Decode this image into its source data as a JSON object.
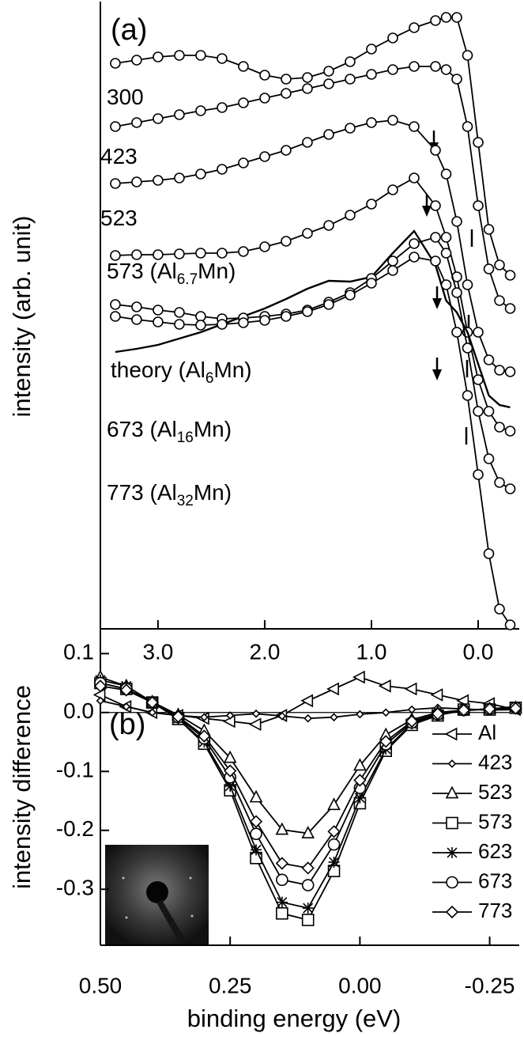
{
  "chart_data": [
    {
      "type": "line",
      "title": "(a)",
      "ylabel": "intensity (arb. unit)",
      "x": [
        3.4,
        3.2,
        3.0,
        2.8,
        2.6,
        2.4,
        2.2,
        2.0,
        1.8,
        1.6,
        1.4,
        1.2,
        1.0,
        0.8,
        0.6,
        0.4,
        0.3,
        0.2,
        0.1,
        0.0,
        -0.1,
        -0.2,
        -0.3
      ],
      "xlim": [
        3.54,
        -0.385
      ],
      "ylim": [
        0,
        793
      ],
      "xticks": [
        {
          "value": 3,
          "label": "3.0"
        },
        {
          "value": 2,
          "label": "2.0"
        },
        {
          "value": 1,
          "label": "1.0"
        },
        {
          "value": 0,
          "label": "0.0"
        }
      ],
      "series": [
        {
          "label": {
            "text": "300"
          },
          "marker": "circle",
          "color": "#000000",
          "values": [
            715,
            719,
            723,
            725,
            725,
            721,
            711,
            700,
            695,
            697,
            705,
            717,
            733,
            747,
            760,
            769,
            773,
            773,
            725,
            615,
            505,
            460,
            447
          ]
        },
        {
          "label": {
            "text": "423"
          },
          "marker": "circle",
          "color": "#000000",
          "values": [
            635,
            640,
            645,
            650,
            655,
            659,
            665,
            671,
            677,
            683,
            689,
            695,
            701,
            707,
            711,
            711,
            707,
            695,
            635,
            535,
            455,
            415,
            405
          ]
        },
        {
          "label": {
            "text": "523"
          },
          "marker": "circle",
          "color": "#000000",
          "values": [
            563,
            565,
            567,
            570,
            575,
            581,
            589,
            597,
            605,
            615,
            625,
            633,
            640,
            643,
            635,
            605,
            575,
            515,
            435,
            375,
            340,
            327,
            325
          ]
        },
        {
          "label": {
            "text": "573 (Al",
            "sub": "6.7",
            "tail": "Mn)"
          },
          "marker": "circle",
          "color": "#000000",
          "values": [
            472,
            473,
            473,
            474,
            475,
            475,
            477,
            483,
            490,
            500,
            510,
            523,
            537,
            555,
            570,
            535,
            495,
            445,
            375,
            315,
            275,
            255,
            250
          ]
        },
        {
          "label": {
            "text": "theory (Al",
            "sub": "6",
            "tail": "Mn)"
          },
          "marker": "none",
          "color": "#000000",
          "values": [
            350,
            354,
            359,
            367,
            375,
            385,
            395,
            405,
            417,
            430,
            440,
            439,
            445,
            475,
            503,
            460,
            415,
            400,
            375,
            335,
            295,
            283,
            280
          ]
        },
        {
          "label": {
            "text": "673 (Al",
            "sub": "16",
            "tail": "Mn)"
          },
          "marker": "circle",
          "color": "#000000",
          "values": [
            410,
            407,
            403,
            400,
            395,
            392,
            393,
            395,
            398,
            403,
            413,
            425,
            443,
            465,
            487,
            495,
            475,
            425,
            355,
            275,
            215,
            185,
            177
          ]
        },
        {
          "label": {
            "text": "773 (Al",
            "sub": "32",
            "tail": "Mn)"
          },
          "marker": "circle",
          "color": "#000000",
          "values": [
            395,
            391,
            388,
            385,
            384,
            385,
            387,
            390,
            395,
            401,
            410,
            422,
            437,
            453,
            470,
            465,
            435,
            375,
            295,
            195,
            95,
            25,
            5
          ]
        }
      ]
    },
    {
      "type": "line",
      "title": "(b)",
      "ylabel": "intensity difference",
      "xlabel": "binding energy (eV)",
      "x": [
        0.5,
        0.45,
        0.4,
        0.35,
        0.3,
        0.25,
        0.2,
        0.15,
        0.1,
        0.05,
        0.0,
        -0.05,
        -0.1,
        -0.15,
        -0.2,
        -0.25,
        -0.3
      ],
      "xlim": [
        0.5,
        -0.307
      ],
      "ylim": [
        -0.395,
        0.142
      ],
      "xticks": [
        {
          "value": 0.5,
          "label": "0.50"
        },
        0.25,
        {
          "value": 0,
          "label": "0.00"
        },
        -0.25
      ],
      "yticks": [
        0.1,
        {
          "value": 0,
          "label": "0.0"
        },
        -0.1,
        -0.2,
        -0.3
      ],
      "zero_line": true,
      "legend": "right",
      "series": [
        {
          "name": "Al",
          "marker": "triangle-left",
          "color": "#000000",
          "values": [
            0.03,
            0.01,
            0.0,
            -0.005,
            -0.01,
            -0.015,
            -0.02,
            -0.005,
            0.02,
            0.04,
            0.06,
            0.045,
            0.04,
            0.03,
            0.02,
            0.015,
            0.005
          ]
        },
        {
          "name": "423",
          "marker": "diamond-small",
          "color": "#000000",
          "values": [
            0.02,
            0.01,
            0.0,
            -0.005,
            -0.008,
            -0.005,
            -0.002,
            -0.006,
            -0.01,
            -0.008,
            -0.003,
            0.0,
            0.005,
            0.008,
            0.006,
            0.004,
            0.005
          ]
        },
        {
          "name": "523",
          "marker": "triangle-up",
          "color": "#000000",
          "values": [
            0.06,
            0.045,
            0.018,
            -0.004,
            -0.031,
            -0.077,
            -0.144,
            -0.199,
            -0.205,
            -0.157,
            -0.09,
            -0.038,
            -0.012,
            0.0,
            0.004,
            0.006,
            0.008
          ]
        },
        {
          "name": "573",
          "marker": "square",
          "color": "#000000",
          "values": [
            0.05,
            0.04,
            0.017,
            -0.011,
            -0.053,
            -0.132,
            -0.247,
            -0.341,
            -0.352,
            -0.269,
            -0.154,
            -0.065,
            -0.021,
            -0.005,
            0.005,
            0.005,
            0.008
          ]
        },
        {
          "name": "623",
          "marker": "star",
          "color": "#000000",
          "values": [
            0.055,
            0.045,
            0.017,
            -0.01,
            -0.05,
            -0.125,
            -0.233,
            -0.322,
            -0.332,
            -0.254,
            -0.145,
            -0.062,
            -0.019,
            -0.004,
            0.003,
            0.006,
            0.01
          ]
        },
        {
          "name": "673",
          "marker": "circle",
          "color": "#000000",
          "values": [
            0.05,
            0.04,
            0.017,
            -0.008,
            -0.044,
            -0.11,
            -0.206,
            -0.284,
            -0.293,
            -0.224,
            -0.128,
            -0.054,
            -0.017,
            -0.003,
            0.004,
            0.006,
            0.008
          ]
        },
        {
          "name": "773",
          "marker": "diamond",
          "color": "#000000",
          "values": [
            0.045,
            0.038,
            0.017,
            -0.007,
            -0.04,
            -0.099,
            -0.185,
            -0.256,
            -0.264,
            -0.202,
            -0.115,
            -0.049,
            -0.015,
            -0.002,
            0.004,
            0.006,
            0.007
          ]
        }
      ]
    }
  ]
}
